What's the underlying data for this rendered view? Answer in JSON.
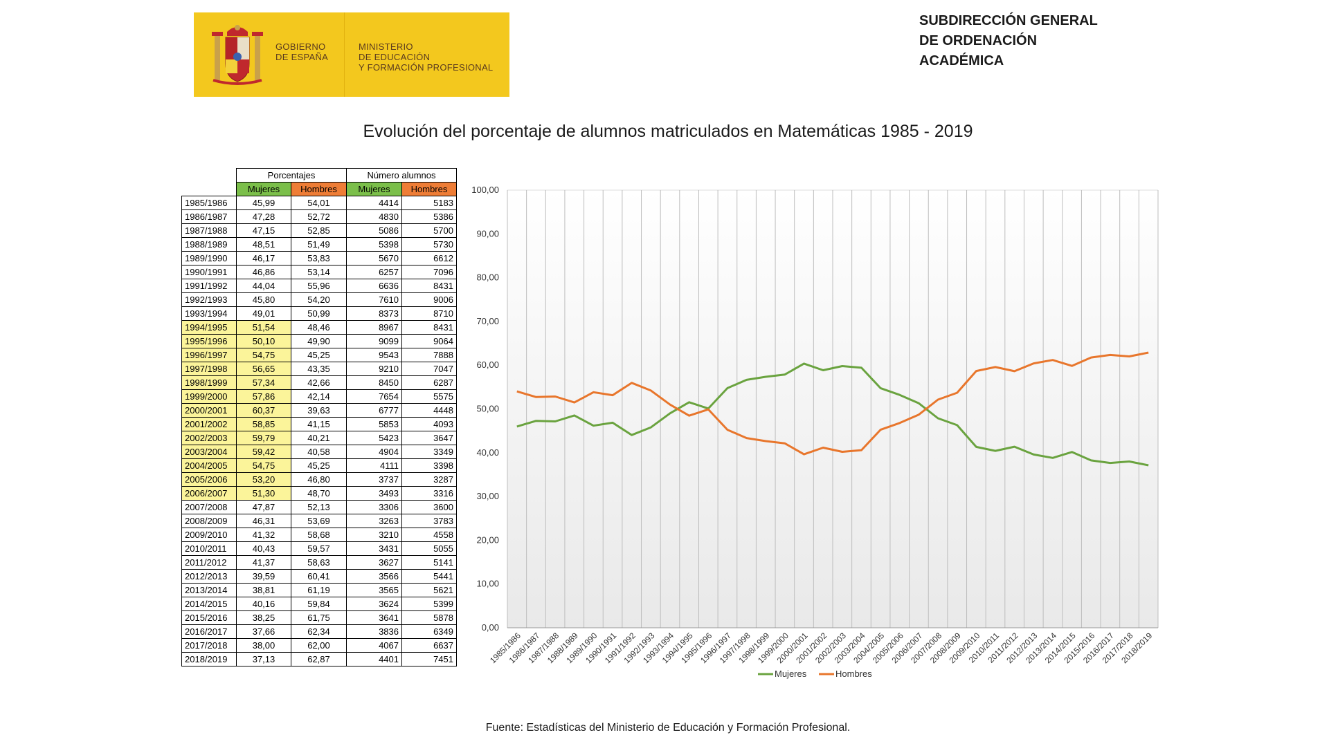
{
  "header": {
    "logo_left_lines": [
      "GOBIERNO",
      "DE ESPAÑA"
    ],
    "logo_right_lines": [
      "MINISTERIO",
      "DE EDUCACIÓN",
      "Y FORMACIÓN PROFESIONAL"
    ],
    "subdireccion_lines": [
      "SUBDIRECCIÓN GENERAL",
      "DE ORDENACIÓN",
      "ACADÉMICA"
    ]
  },
  "title": "Evolución del porcentaje de alumnos matriculados en Matemáticas 1985 - 2019",
  "source": "Fuente: Estadísticas del Ministerio de Educación y Formación Profesional.",
  "colors": {
    "mujeres": "#6aa33f",
    "hombres": "#e8762c",
    "highlight": "#fbf49a",
    "logo": "#f3c81e"
  },
  "table": {
    "group_headers": [
      "Porcentajes",
      "Número alumnos"
    ],
    "sub_headers": [
      "Mujeres",
      "Hombres",
      "Mujeres",
      "Hombres"
    ],
    "rows": [
      {
        "year": "1985/1986",
        "pm": "45,99",
        "ph": "54,01",
        "nm": "4414",
        "nh": "5183",
        "hl": false
      },
      {
        "year": "1986/1987",
        "pm": "47,28",
        "ph": "52,72",
        "nm": "4830",
        "nh": "5386",
        "hl": false
      },
      {
        "year": "1987/1988",
        "pm": "47,15",
        "ph": "52,85",
        "nm": "5086",
        "nh": "5700",
        "hl": false
      },
      {
        "year": "1988/1989",
        "pm": "48,51",
        "ph": "51,49",
        "nm": "5398",
        "nh": "5730",
        "hl": false
      },
      {
        "year": "1989/1990",
        "pm": "46,17",
        "ph": "53,83",
        "nm": "5670",
        "nh": "6612",
        "hl": false
      },
      {
        "year": "1990/1991",
        "pm": "46,86",
        "ph": "53,14",
        "nm": "6257",
        "nh": "7096",
        "hl": false
      },
      {
        "year": "1991/1992",
        "pm": "44,04",
        "ph": "55,96",
        "nm": "6636",
        "nh": "8431",
        "hl": false
      },
      {
        "year": "1992/1993",
        "pm": "45,80",
        "ph": "54,20",
        "nm": "7610",
        "nh": "9006",
        "hl": false
      },
      {
        "year": "1993/1994",
        "pm": "49,01",
        "ph": "50,99",
        "nm": "8373",
        "nh": "8710",
        "hl": false
      },
      {
        "year": "1994/1995",
        "pm": "51,54",
        "ph": "48,46",
        "nm": "8967",
        "nh": "8431",
        "hl": true
      },
      {
        "year": "1995/1996",
        "pm": "50,10",
        "ph": "49,90",
        "nm": "9099",
        "nh": "9064",
        "hl": true
      },
      {
        "year": "1996/1997",
        "pm": "54,75",
        "ph": "45,25",
        "nm": "9543",
        "nh": "7888",
        "hl": true
      },
      {
        "year": "1997/1998",
        "pm": "56,65",
        "ph": "43,35",
        "nm": "9210",
        "nh": "7047",
        "hl": true
      },
      {
        "year": "1998/1999",
        "pm": "57,34",
        "ph": "42,66",
        "nm": "8450",
        "nh": "6287",
        "hl": true
      },
      {
        "year": "1999/2000",
        "pm": "57,86",
        "ph": "42,14",
        "nm": "7654",
        "nh": "5575",
        "hl": true
      },
      {
        "year": "2000/2001",
        "pm": "60,37",
        "ph": "39,63",
        "nm": "6777",
        "nh": "4448",
        "hl": true
      },
      {
        "year": "2001/2002",
        "pm": "58,85",
        "ph": "41,15",
        "nm": "5853",
        "nh": "4093",
        "hl": true
      },
      {
        "year": "2002/2003",
        "pm": "59,79",
        "ph": "40,21",
        "nm": "5423",
        "nh": "3647",
        "hl": true
      },
      {
        "year": "2003/2004",
        "pm": "59,42",
        "ph": "40,58",
        "nm": "4904",
        "nh": "3349",
        "hl": true
      },
      {
        "year": "2004/2005",
        "pm": "54,75",
        "ph": "45,25",
        "nm": "4111",
        "nh": "3398",
        "hl": true
      },
      {
        "year": "2005/2006",
        "pm": "53,20",
        "ph": "46,80",
        "nm": "3737",
        "nh": "3287",
        "hl": true
      },
      {
        "year": "2006/2007",
        "pm": "51,30",
        "ph": "48,70",
        "nm": "3493",
        "nh": "3316",
        "hl": true
      },
      {
        "year": "2007/2008",
        "pm": "47,87",
        "ph": "52,13",
        "nm": "3306",
        "nh": "3600",
        "hl": false
      },
      {
        "year": "2008/2009",
        "pm": "46,31",
        "ph": "53,69",
        "nm": "3263",
        "nh": "3783",
        "hl": false
      },
      {
        "year": "2009/2010",
        "pm": "41,32",
        "ph": "58,68",
        "nm": "3210",
        "nh": "4558",
        "hl": false
      },
      {
        "year": "2010/2011",
        "pm": "40,43",
        "ph": "59,57",
        "nm": "3431",
        "nh": "5055",
        "hl": false
      },
      {
        "year": "2011/2012",
        "pm": "41,37",
        "ph": "58,63",
        "nm": "3627",
        "nh": "5141",
        "hl": false
      },
      {
        "year": "2012/2013",
        "pm": "39,59",
        "ph": "60,41",
        "nm": "3566",
        "nh": "5441",
        "hl": false
      },
      {
        "year": "2013/2014",
        "pm": "38,81",
        "ph": "61,19",
        "nm": "3565",
        "nh": "5621",
        "hl": false
      },
      {
        "year": "2014/2015",
        "pm": "40,16",
        "ph": "59,84",
        "nm": "3624",
        "nh": "5399",
        "hl": false
      },
      {
        "year": "2015/2016",
        "pm": "38,25",
        "ph": "61,75",
        "nm": "3641",
        "nh": "5878",
        "hl": false
      },
      {
        "year": "2016/2017",
        "pm": "37,66",
        "ph": "62,34",
        "nm": "3836",
        "nh": "6349",
        "hl": false
      },
      {
        "year": "2017/2018",
        "pm": "38,00",
        "ph": "62,00",
        "nm": "4067",
        "nh": "6637",
        "hl": false
      },
      {
        "year": "2018/2019",
        "pm": "37,13",
        "ph": "62,87",
        "nm": "4401",
        "nh": "7451",
        "hl": false
      }
    ]
  },
  "chart_data": {
    "type": "line",
    "title": "",
    "xlabel": "",
    "ylabel": "",
    "ylim": [
      0,
      100
    ],
    "y_ticks": [
      "0,00",
      "10,00",
      "20,00",
      "30,00",
      "40,00",
      "50,00",
      "60,00",
      "70,00",
      "80,00",
      "90,00",
      "100,00"
    ],
    "grid": "vertical",
    "legend_position": "bottom",
    "categories": [
      "1985/1986",
      "1986/1987",
      "1987/1988",
      "1988/1989",
      "1989/1990",
      "1990/1991",
      "1991/1992",
      "1992/1993",
      "1993/1994",
      "1994/1995",
      "1995/1996",
      "1996/1997",
      "1997/1998",
      "1998/1999",
      "1999/2000",
      "2000/2001",
      "2001/2002",
      "2002/2003",
      "2003/2004",
      "2004/2005",
      "2005/2006",
      "2006/2007",
      "2007/2008",
      "2008/2009",
      "2009/2010",
      "2010/2011",
      "2011/2012",
      "2012/2013",
      "2013/2014",
      "2014/2015",
      "2015/2016",
      "2016/2017",
      "2017/2018",
      "2018/2019"
    ],
    "series": [
      {
        "name": "Mujeres",
        "color": "#6aa33f",
        "values": [
          45.99,
          47.28,
          47.15,
          48.51,
          46.17,
          46.86,
          44.04,
          45.8,
          49.01,
          51.54,
          50.1,
          54.75,
          56.65,
          57.34,
          57.86,
          60.37,
          58.85,
          59.79,
          59.42,
          54.75,
          53.2,
          51.3,
          47.87,
          46.31,
          41.32,
          40.43,
          41.37,
          39.59,
          38.81,
          40.16,
          38.25,
          37.66,
          38.0,
          37.13
        ]
      },
      {
        "name": "Hombres",
        "color": "#e8762c",
        "values": [
          54.01,
          52.72,
          52.85,
          51.49,
          53.83,
          53.14,
          55.96,
          54.2,
          50.99,
          48.46,
          49.9,
          45.25,
          43.35,
          42.66,
          42.14,
          39.63,
          41.15,
          40.21,
          40.58,
          45.25,
          46.8,
          48.7,
          52.13,
          53.69,
          58.68,
          59.57,
          58.63,
          60.41,
          61.19,
          59.84,
          61.75,
          62.34,
          62.0,
          62.87
        ]
      }
    ]
  }
}
